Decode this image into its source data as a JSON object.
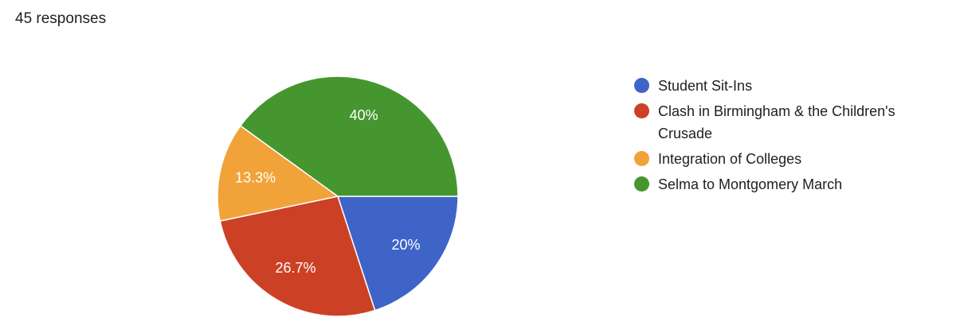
{
  "header": {
    "title": "45 responses"
  },
  "chart_data": {
    "type": "pie",
    "categories": [
      "Student Sit-Ins",
      "Clash in Birmingham & the Children's Crusade",
      "Integration of Colleges",
      "Selma to Montgomery March"
    ],
    "values": [
      20,
      26.7,
      13.3,
      40
    ],
    "value_labels": [
      "20%",
      "26.7%",
      "13.3%",
      "40%"
    ],
    "colors": [
      "#3e64c8",
      "#cc4125",
      "#f1a33a",
      "#45962f"
    ],
    "legend": "right"
  }
}
